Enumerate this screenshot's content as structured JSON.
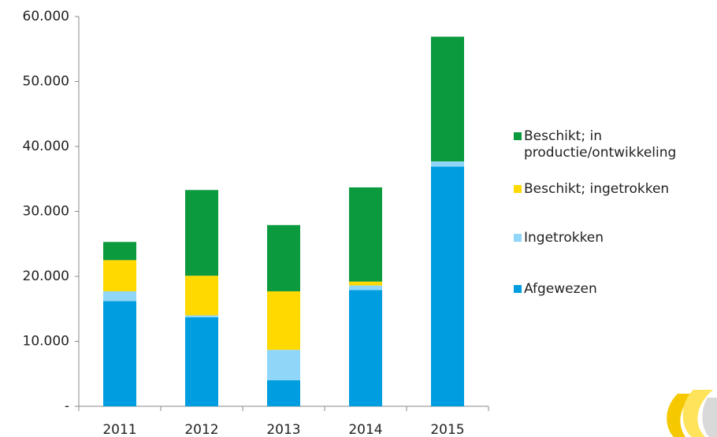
{
  "chart_data": {
    "type": "stacked-bar",
    "categories": [
      "2011",
      "2012",
      "2013",
      "2014",
      "2015"
    ],
    "series": [
      {
        "name": "Afgewezen",
        "color": "#009ee0",
        "values": [
          16200,
          13700,
          4000,
          17900,
          36900
        ]
      },
      {
        "name": "Ingetrokken",
        "color": "#8fd6f8",
        "values": [
          1500,
          300,
          4700,
          700,
          800
        ]
      },
      {
        "name": "Beschikt; ingetrokken",
        "color": "#ffd900",
        "values": [
          4800,
          6100,
          9000,
          600,
          0
        ]
      },
      {
        "name": "Beschikt; in productie/ontwikkeling",
        "color": "#0c9a3e",
        "values": [
          2800,
          13200,
          10200,
          14500,
          19200
        ]
      }
    ],
    "ylim": [
      0,
      60000
    ],
    "yticks": [
      {
        "value": 0,
        "label": "-"
      },
      {
        "value": 10000,
        "label": "10.000"
      },
      {
        "value": 20000,
        "label": "20.000"
      },
      {
        "value": 30000,
        "label": "30.000"
      },
      {
        "value": 40000,
        "label": "40.000"
      },
      {
        "value": 50000,
        "label": "50.000"
      },
      {
        "value": 60000,
        "label": "60.000"
      }
    ],
    "legend": "right"
  }
}
